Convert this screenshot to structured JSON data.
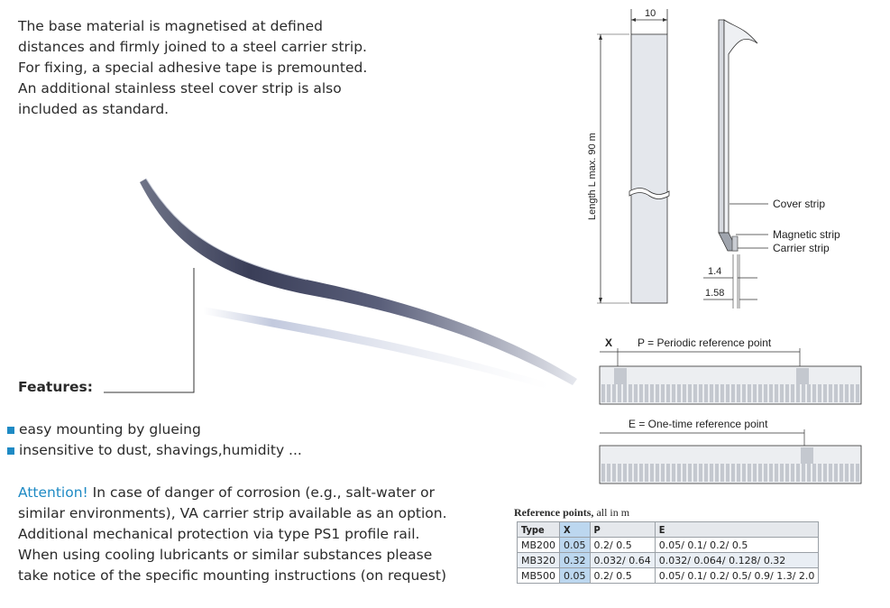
{
  "intro_lines": [
    "The base material is magnetised at defined",
    "distances and firmly joined to a steel carrier strip.",
    "For fixing, a special adhesive tape is premounted.",
    "An additional stainless steel cover strip is also",
    "included as standard."
  ],
  "features": {
    "title": "Features:",
    "items": [
      "easy mounting by glueing",
      "insensitive to dust, shavings,humidity ..."
    ]
  },
  "attention": {
    "label": "Attention!",
    "lines": [
      " In case of danger of corrosion (e.g., salt-water or",
      "similar environments), VA carrier strip available as an option.",
      "Additional mechanical protection via type PS1 profile rail.",
      "When using cooling lubricants or similar substances please",
      "take notice of the specific mounting instructions (on request)"
    ]
  },
  "drawing": {
    "width_dim": "10",
    "length_label": "Length L max. 90 m",
    "cover_strip": "Cover strip",
    "magnetic_strip": "Magnetic strip",
    "carrier_strip": "Carrier strip",
    "dim_1": "1.4",
    "dim_2": "1.58"
  },
  "ref_diagram": {
    "x_label": "X",
    "periodic": "P = Periodic reference point",
    "onetime": "E = One-time reference point"
  },
  "ref_table": {
    "title_bold": "Reference points,",
    "title_rest": " all in m",
    "headers": [
      "Type",
      "X",
      "P",
      "E"
    ],
    "rows": [
      [
        "MB200",
        "0.05",
        "0.2/ 0.5",
        "0.05/ 0.1/ 0.2/ 0.5"
      ],
      [
        "MB320",
        "0.32",
        "0.032/ 0.64",
        "0.032/ 0.064/ 0.128/ 0.32"
      ],
      [
        "MB500",
        "0.05",
        "0.2/ 0.5",
        "0.05/ 0.1/ 0.2/ 0.5/ 0.9/ 1.3/ 2.0"
      ]
    ]
  },
  "colors": {
    "accent": "#1e8ac4"
  }
}
